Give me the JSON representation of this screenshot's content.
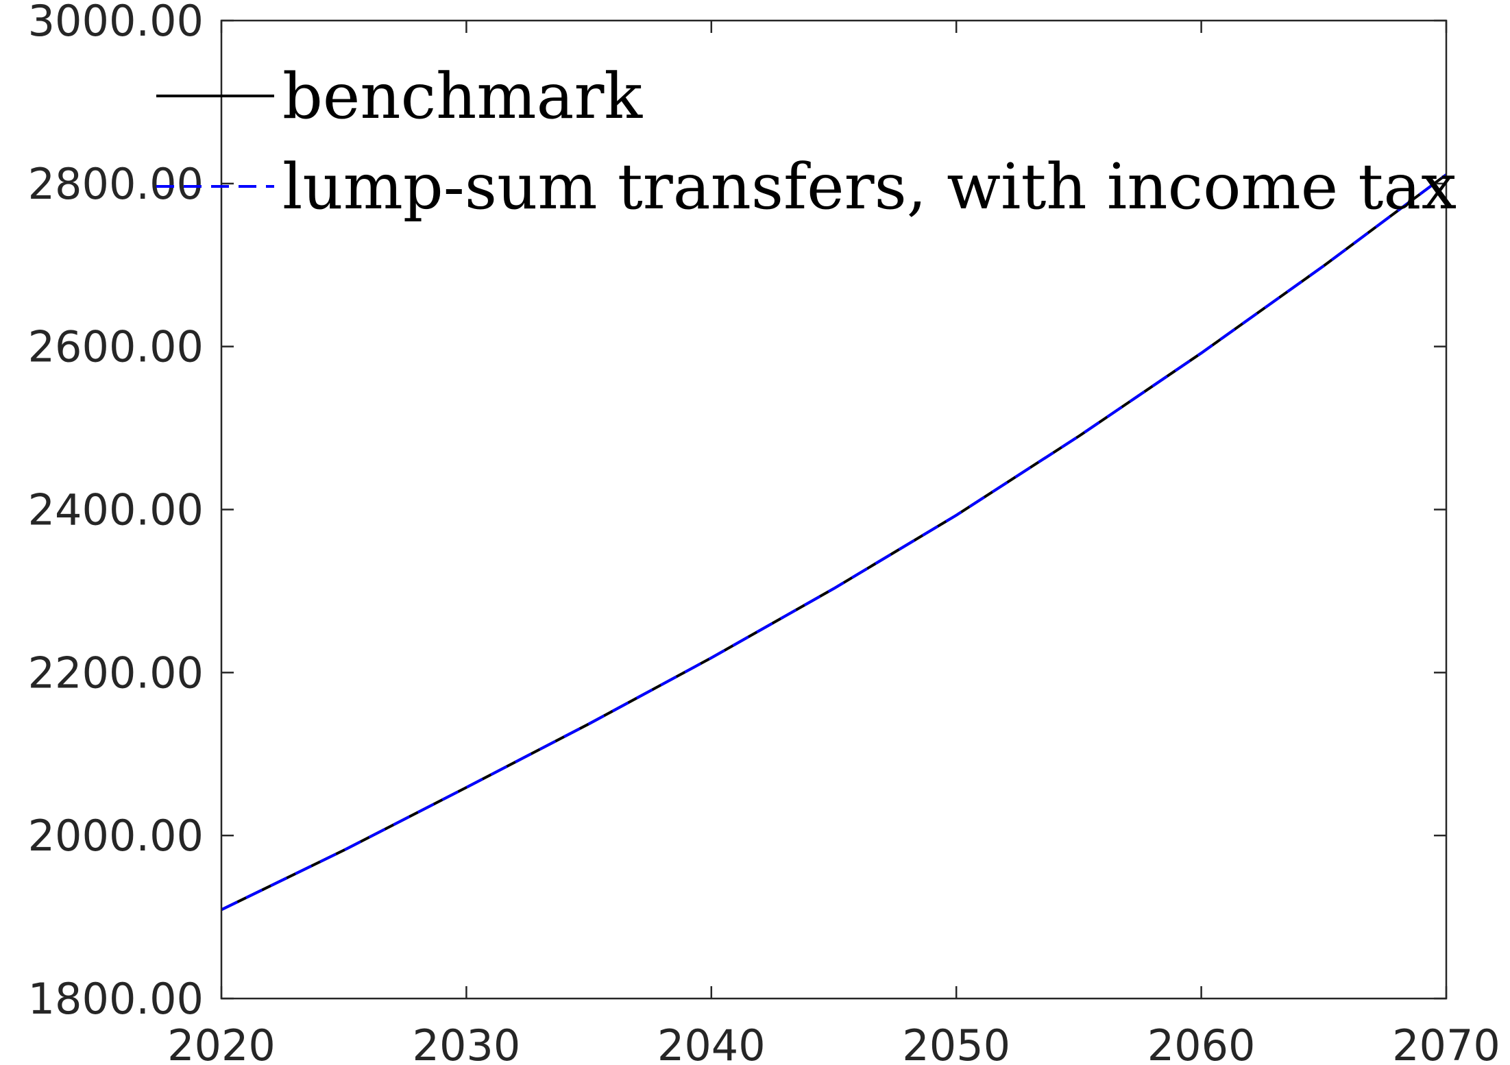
{
  "chart_data": {
    "type": "line",
    "title": "",
    "xlabel": "",
    "ylabel": "",
    "xlim": [
      2020,
      2070
    ],
    "ylim": [
      1800,
      3000
    ],
    "xticks": [
      2020,
      2030,
      2040,
      2050,
      2060,
      2070
    ],
    "xtick_labels": [
      "2020",
      "2030",
      "2040",
      "2050",
      "2060",
      "2070"
    ],
    "yticks": [
      1800,
      2000,
      2200,
      2400,
      2600,
      2800,
      3000
    ],
    "ytick_labels": [
      "1800.00",
      "2000.00",
      "2200.00",
      "2400.00",
      "2600.00",
      "2800.00",
      "3000.00"
    ],
    "grid": false,
    "legend_position": "top-left",
    "x": [
      2020,
      2025,
      2030,
      2035,
      2040,
      2045,
      2050,
      2055,
      2060,
      2065,
      2070
    ],
    "series": [
      {
        "name": "benchmark",
        "color": "#000000",
        "style": "solid",
        "values": [
          1909,
          1982,
          2059,
          2137,
          2218,
          2303,
          2393,
          2490,
          2592,
          2699,
          2811
        ]
      },
      {
        "name": "lump-sum transfers, with income tax",
        "color": "#0000ff",
        "style": "dashed",
        "values": [
          1909,
          1982,
          2059,
          2137,
          2218,
          2303,
          2393,
          2490,
          2592,
          2699,
          2811
        ]
      }
    ]
  }
}
